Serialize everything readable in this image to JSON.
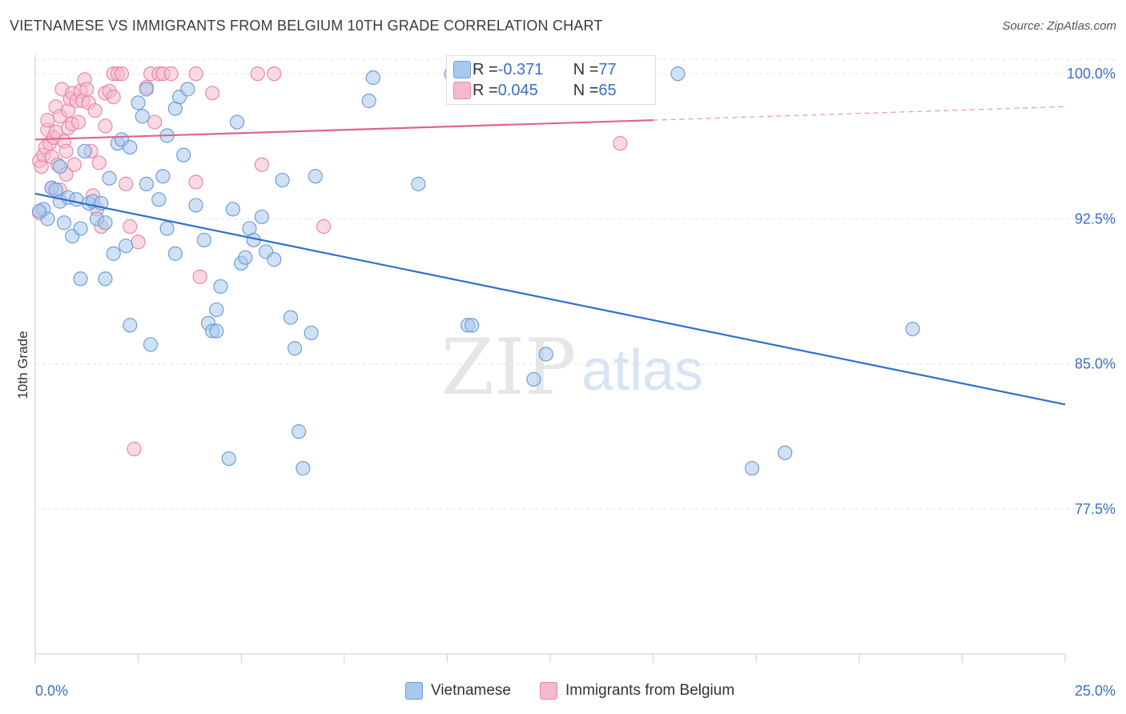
{
  "title": "VIETNAMESE VS IMMIGRANTS FROM BELGIUM 10TH GRADE CORRELATION CHART",
  "source": "Source: ZipAtlas.com",
  "watermark": {
    "zip": "ZIP",
    "atlas": "atlas"
  },
  "legend_top": {
    "rows": [
      {
        "r_label": "R = ",
        "r_value": "-0.371",
        "n_label": "N = ",
        "n_value": "77"
      },
      {
        "r_label": "R = ",
        "r_value": "0.045",
        "n_label": "N = ",
        "n_value": "65"
      }
    ]
  },
  "legend_bottom": {
    "items": [
      "Vietnamese",
      "Immigrants from Belgium"
    ]
  },
  "colors": {
    "blue_fill": "#a9c8ee",
    "blue_stroke": "#6f9fd8",
    "blue_line": "#2f6fd0",
    "pink_fill": "#f6b9cd",
    "pink_stroke": "#e88aa8",
    "pink_line": "#e0648c",
    "tick_label": "#3a6fc8",
    "grid": "#e4e4e4"
  },
  "chart_data": {
    "type": "scatter",
    "title": "VIETNAMESE VS IMMIGRANTS FROM BELGIUM 10TH GRADE CORRELATION CHART",
    "xlabel": "",
    "ylabel": "10th Grade",
    "xlim": [
      0.0,
      25.0
    ],
    "ylim": [
      70.0,
      101.0
    ],
    "x_tick_labels": [
      "0.0%",
      "25.0%"
    ],
    "y_ticks": [
      77.5,
      85.0,
      92.5,
      100.0
    ],
    "y_tick_labels": [
      "77.5%",
      "85.0%",
      "92.5%",
      "100.0%"
    ],
    "grid": true,
    "legend_position": "top-center",
    "series": [
      {
        "name": "Vietnamese",
        "r": -0.371,
        "n": 77,
        "trend": {
          "x": [
            0.0,
            25.0
          ],
          "y": [
            93.8,
            82.9
          ]
        },
        "points": [
          [
            0.2,
            93.0
          ],
          [
            0.3,
            92.5
          ],
          [
            0.4,
            94.1
          ],
          [
            0.5,
            94.0
          ],
          [
            0.6,
            95.2
          ],
          [
            0.6,
            93.4
          ],
          [
            0.7,
            92.3
          ],
          [
            0.8,
            93.6
          ],
          [
            0.9,
            91.6
          ],
          [
            1.0,
            93.5
          ],
          [
            1.1,
            89.4
          ],
          [
            1.1,
            92.0
          ],
          [
            1.2,
            96.0
          ],
          [
            1.3,
            93.3
          ],
          [
            1.4,
            93.4
          ],
          [
            1.5,
            92.5
          ],
          [
            1.6,
            93.3
          ],
          [
            1.7,
            92.3
          ],
          [
            1.7,
            89.4
          ],
          [
            1.8,
            94.6
          ],
          [
            1.9,
            90.7
          ],
          [
            2.0,
            96.4
          ],
          [
            2.1,
            96.6
          ],
          [
            2.2,
            91.1
          ],
          [
            2.3,
            96.2
          ],
          [
            2.3,
            87.0
          ],
          [
            2.5,
            98.5
          ],
          [
            2.6,
            97.8
          ],
          [
            2.7,
            94.3
          ],
          [
            2.7,
            99.2
          ],
          [
            2.8,
            86.0
          ],
          [
            3.0,
            93.5
          ],
          [
            3.1,
            94.7
          ],
          [
            3.2,
            92.0
          ],
          [
            3.2,
            96.8
          ],
          [
            3.4,
            90.7
          ],
          [
            3.4,
            98.2
          ],
          [
            3.5,
            98.8
          ],
          [
            3.6,
            95.8
          ],
          [
            3.7,
            99.2
          ],
          [
            3.9,
            93.2
          ],
          [
            4.1,
            91.4
          ],
          [
            4.2,
            87.1
          ],
          [
            4.3,
            86.7
          ],
          [
            4.4,
            86.7
          ],
          [
            4.4,
            87.8
          ],
          [
            4.5,
            89.0
          ],
          [
            4.7,
            80.1
          ],
          [
            4.8,
            93.0
          ],
          [
            4.9,
            97.5
          ],
          [
            5.0,
            90.2
          ],
          [
            5.1,
            90.5
          ],
          [
            5.2,
            92.0
          ],
          [
            5.3,
            91.4
          ],
          [
            5.5,
            92.6
          ],
          [
            5.6,
            90.8
          ],
          [
            5.8,
            90.4
          ],
          [
            6.0,
            94.5
          ],
          [
            6.2,
            87.4
          ],
          [
            6.3,
            85.8
          ],
          [
            6.4,
            81.5
          ],
          [
            6.5,
            79.6
          ],
          [
            6.7,
            86.6
          ],
          [
            6.8,
            94.7
          ],
          [
            8.1,
            98.6
          ],
          [
            8.2,
            99.8
          ],
          [
            9.3,
            94.3
          ],
          [
            10.1,
            100.0
          ],
          [
            10.5,
            87.0
          ],
          [
            10.6,
            87.0
          ],
          [
            12.1,
            84.2
          ],
          [
            12.4,
            85.5
          ],
          [
            15.6,
            100.0
          ],
          [
            17.4,
            79.6
          ],
          [
            18.2,
            80.4
          ],
          [
            21.3,
            86.8
          ],
          [
            0.1,
            92.9
          ]
        ]
      },
      {
        "name": "Immigrants from Belgium",
        "r": 0.045,
        "n": 65,
        "trend": {
          "x": [
            0.0,
            15.0
          ],
          "y": [
            96.6,
            97.6
          ]
        },
        "trend_dashed": {
          "x": [
            15.0,
            25.0
          ],
          "y": [
            97.6,
            98.3
          ]
        },
        "points": [
          [
            0.1,
            95.5
          ],
          [
            0.1,
            92.8
          ],
          [
            0.15,
            95.2
          ],
          [
            0.2,
            95.8
          ],
          [
            0.25,
            96.2
          ],
          [
            0.3,
            97.1
          ],
          [
            0.3,
            97.6
          ],
          [
            0.35,
            96.4
          ],
          [
            0.4,
            95.7
          ],
          [
            0.4,
            94.1
          ],
          [
            0.45,
            96.7
          ],
          [
            0.5,
            97.0
          ],
          [
            0.5,
            98.3
          ],
          [
            0.55,
            95.3
          ],
          [
            0.6,
            97.8
          ],
          [
            0.6,
            94.0
          ],
          [
            0.65,
            99.2
          ],
          [
            0.7,
            96.5
          ],
          [
            0.75,
            96.0
          ],
          [
            0.75,
            94.8
          ],
          [
            0.8,
            98.1
          ],
          [
            0.8,
            97.2
          ],
          [
            0.85,
            98.7
          ],
          [
            0.9,
            99.0
          ],
          [
            0.9,
            97.4
          ],
          [
            0.95,
            95.3
          ],
          [
            1.0,
            98.6
          ],
          [
            1.05,
            97.5
          ],
          [
            1.1,
            99.1
          ],
          [
            1.15,
            98.6
          ],
          [
            1.2,
            99.7
          ],
          [
            1.25,
            99.2
          ],
          [
            1.3,
            98.5
          ],
          [
            1.35,
            96.0
          ],
          [
            1.4,
            93.7
          ],
          [
            1.45,
            98.1
          ],
          [
            1.5,
            93.0
          ],
          [
            1.55,
            95.4
          ],
          [
            1.6,
            92.1
          ],
          [
            1.7,
            97.3
          ],
          [
            1.7,
            99.0
          ],
          [
            1.8,
            99.1
          ],
          [
            1.9,
            98.8
          ],
          [
            1.9,
            100.0
          ],
          [
            2.0,
            100.0
          ],
          [
            2.1,
            100.0
          ],
          [
            2.2,
            94.3
          ],
          [
            2.3,
            92.1
          ],
          [
            2.4,
            80.6
          ],
          [
            2.5,
            91.3
          ],
          [
            2.7,
            99.3
          ],
          [
            2.8,
            100.0
          ],
          [
            2.9,
            97.5
          ],
          [
            3.0,
            100.0
          ],
          [
            3.1,
            100.0
          ],
          [
            3.3,
            100.0
          ],
          [
            3.9,
            100.0
          ],
          [
            3.9,
            94.4
          ],
          [
            4.0,
            89.5
          ],
          [
            4.3,
            99.0
          ],
          [
            5.4,
            100.0
          ],
          [
            5.5,
            95.3
          ],
          [
            5.8,
            100.0
          ],
          [
            7.0,
            92.1
          ],
          [
            14.2,
            96.4
          ]
        ]
      }
    ]
  }
}
